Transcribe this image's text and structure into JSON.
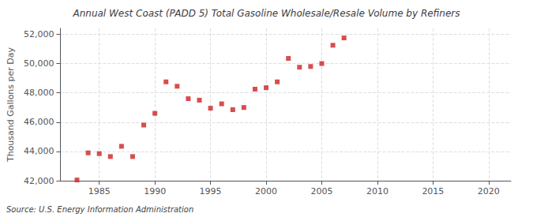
{
  "chart_data": {
    "type": "scatter",
    "title": "Annual West Coast (PADD 5) Total Gasoline Wholesale/Resale Volume by Refiners",
    "ylabel": "Thousand Gallons per Day",
    "source": "Source: U.S. Energy Information Administration",
    "color": "#cc2222",
    "marker": "square",
    "grid": true,
    "xlim": [
      1981.5,
      2022
    ],
    "ylim": [
      42000,
      52400
    ],
    "xticks": [
      1985,
      1990,
      1995,
      2000,
      2005,
      2010,
      2015,
      2020
    ],
    "yticks": [
      {
        "value": 42000,
        "label": "42,000"
      },
      {
        "value": 44000,
        "label": "44,000"
      },
      {
        "value": 46000,
        "label": "46,000"
      },
      {
        "value": 48000,
        "label": "48,000"
      },
      {
        "value": 50000,
        "label": "50,000"
      },
      {
        "value": 52000,
        "label": "52,000"
      }
    ],
    "x": [
      1983,
      1984,
      1985,
      1986,
      1987,
      1988,
      1989,
      1990,
      1991,
      1992,
      1993,
      1994,
      1995,
      1996,
      1997,
      1998,
      1999,
      2000,
      2001,
      2002,
      2003,
      2004,
      2005,
      2006,
      2007
    ],
    "values": [
      42050,
      43900,
      43850,
      43650,
      44350,
      43650,
      45800,
      46600,
      48750,
      48450,
      47600,
      47500,
      46950,
      47250,
      46850,
      47000,
      48250,
      48350,
      48750,
      50350,
      49750,
      49800,
      50000,
      51250,
      51750
    ]
  }
}
